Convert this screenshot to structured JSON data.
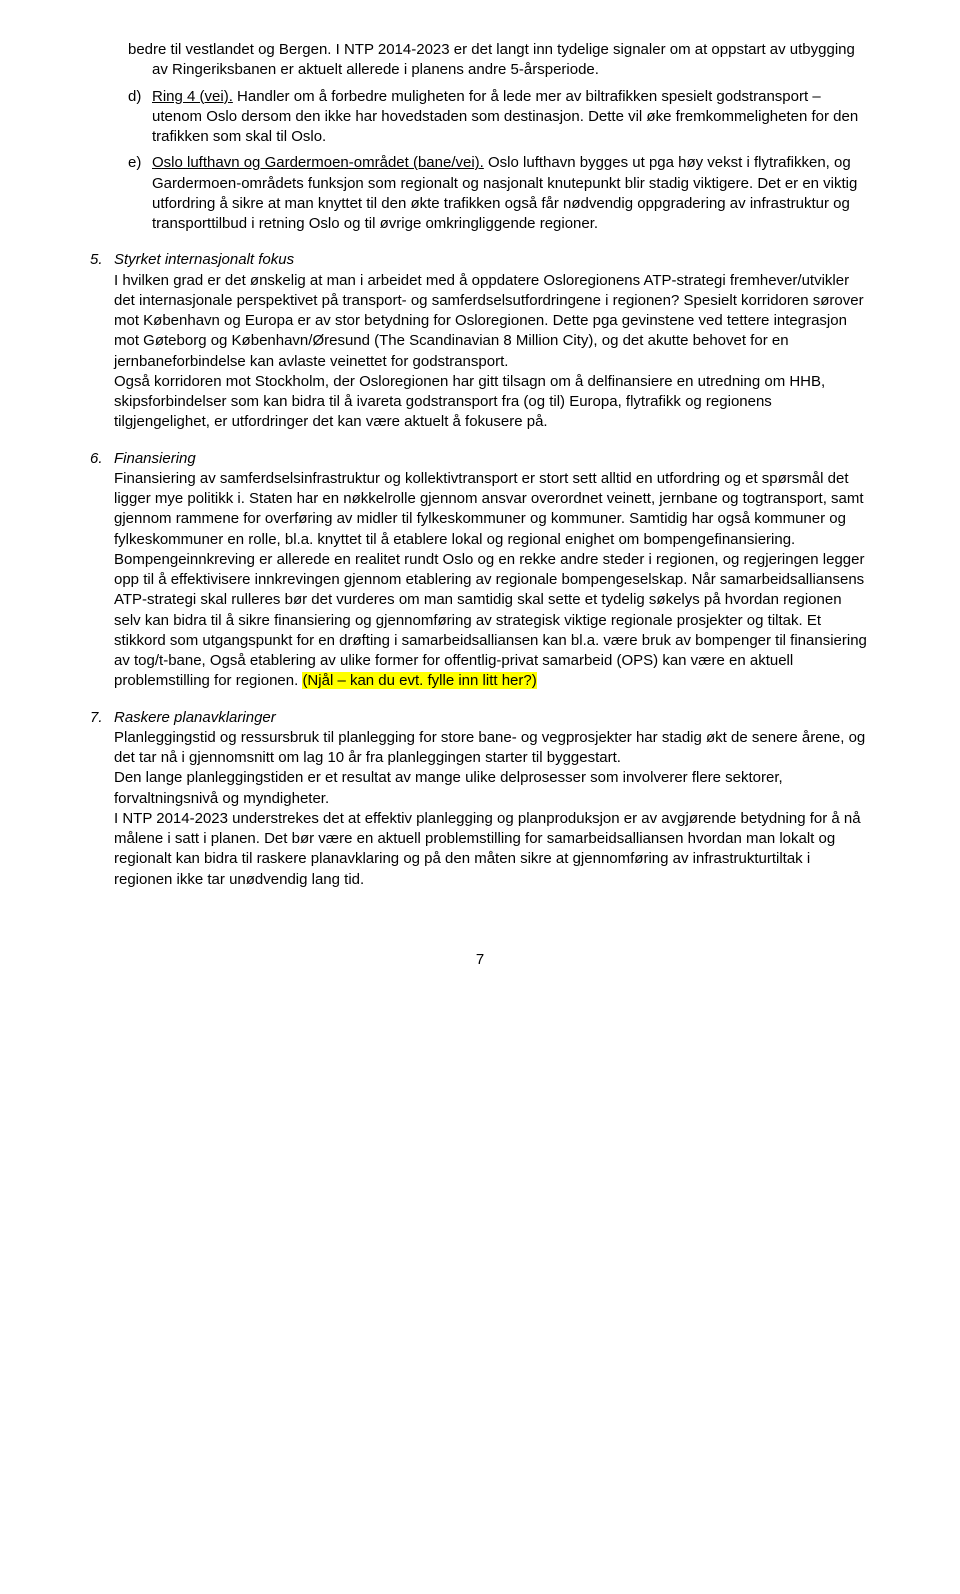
{
  "item_d_cont": "bedre til vestlandet og Bergen. I NTP 2014-2023 er det langt inn tydelige signaler om at oppstart av utbygging av Ringeriksbanen er aktuelt allerede i planens andre 5-årsperiode.",
  "item_d_marker": "d)",
  "item_d_label": "Ring 4 (vei).",
  "item_d_text": " Handler om å forbedre muligheten for å lede mer av biltrafikken spesielt godstransport – utenom Oslo dersom den ikke har hovedstaden som destinasjon. Dette vil øke fremkommeligheten for den trafikken som skal til Oslo.",
  "item_e_marker": "e)",
  "item_e_label": "Oslo lufthavn og Gardermoen-området (bane/vei).",
  "item_e_text": " Oslo lufthavn bygges ut pga høy vekst i flytrafikken, og Gardermoen-områdets funksjon som regionalt og nasjonalt knutepunkt blir stadig viktigere. Det er en viktig utfordring å sikre at man knyttet til den økte trafikken også får nødvendig oppgradering av infrastruktur og transporttilbud i retning Oslo og til øvrige omkringliggende regioner.",
  "section5_marker": "5.",
  "section5_title": "Styrket internasjonalt fokus",
  "section5_body": "I hvilken grad er det ønskelig at man i arbeidet med å oppdatere Osloregionens ATP-strategi fremhever/utvikler det internasjonale perspektivet på transport- og samferdselsutfordringene i regionen? Spesielt korridoren sørover mot København og Europa er av stor betydning for Osloregionen. Dette pga gevinstene ved tettere integrasjon mot Gøteborg og København/Øresund (The Scandinavian 8 Million City), og det akutte behovet for en jernbaneforbindelse kan avlaste veinettet for godstransport.",
  "section5_body2": "Også korridoren mot Stockholm, der Osloregionen har gitt tilsagn om å delfinansiere en utredning om HHB, skipsforbindelser som kan bidra til å ivareta godstransport fra (og til) Europa, flytrafikk og regionens tilgjengelighet, er utfordringer det kan være aktuelt å fokusere på.",
  "section6_marker": "6.",
  "section6_title": "Finansiering",
  "section6_body1": "Finansiering av samferdselsinfrastruktur og kollektivtransport er stort sett alltid en utfordring og et spørsmål det ligger mye politikk i. Staten har en nøkkelrolle gjennom ansvar overordnet veinett, jernbane og togtransport, samt gjennom rammene for overføring av midler til fylkeskommuner og kommuner. Samtidig har også kommuner og fylkeskommuner en rolle, bl.a. knyttet til å etablere lokal og regional enighet om bompengefinansiering. Bompengeinnkreving er allerede en realitet rundt Oslo og en rekke andre steder i regionen, og regjeringen legger opp til å effektivisere innkrevingen gjennom etablering av regionale bompengeselskap. Når samarbeidsalliansens ATP-strategi skal rulleres bør det vurderes om man samtidig skal sette et tydelig søkelys på hvordan regionen selv kan bidra til å sikre finansiering og gjennomføring av strategisk viktige regionale prosjekter og tiltak. Et stikkord som utgangspunkt for en drøfting i samarbeidsalliansen kan bl.a. være bruk av bompenger til finansiering av tog/t-bane, Også etablering av ulike former for offentlig-privat samarbeid (OPS) kan være en aktuell problemstilling for regionen. ",
  "section6_highlight": "(Njål – kan du evt. fylle inn litt her?)",
  "section7_marker": "7.",
  "section7_title": "Raskere planavklaringer",
  "section7_body1": "Planleggingstid og ressursbruk til planlegging for store bane- og vegprosjekter har stadig økt de senere årene, og det tar nå i gjennomsnitt om lag 10 år fra planleggingen starter til byggestart.",
  "section7_body2": "Den lange planleggingstiden er et resultat av mange ulike delprosesser som involverer flere sektorer, forvaltningsnivå og myndigheter.",
  "section7_body3": "I NTP 2014-2023 understrekes det at effektiv planlegging og planproduksjon er av avgjørende betydning for å nå målene i satt i planen. Det bør være en aktuell problemstilling for samarbeidsalliansen hvordan man lokalt og regionalt kan bidra til raskere planavklaring og på den måten sikre at gjennomføring av infrastrukturtiltak i regionen ikke tar unødvendig lang tid.",
  "page_number": "7"
}
